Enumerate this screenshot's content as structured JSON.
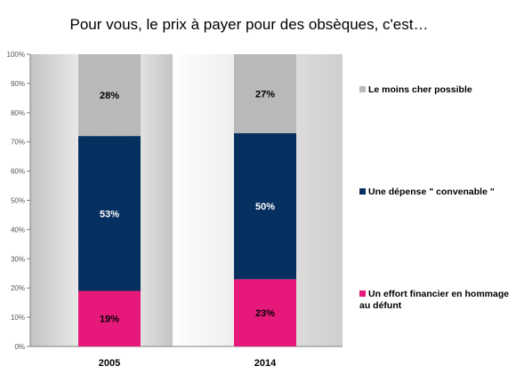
{
  "chart_data": {
    "type": "bar",
    "stacked": true,
    "title": "Pour vous, le prix à payer pour des obsèques, c'est…",
    "categories": [
      "2005",
      "2014"
    ],
    "ylim": [
      0,
      100
    ],
    "yticks": [
      "0%",
      "10%",
      "20%",
      "30%",
      "40%",
      "50%",
      "60%",
      "70%",
      "80%",
      "90%",
      "100%"
    ],
    "series": [
      {
        "name": "Un effort financier en hommage au défunt",
        "values": [
          19,
          23
        ],
        "labels": [
          "19%",
          "23%"
        ],
        "color": "#e6197a"
      },
      {
        "name": "Une dépense \" convenable \"",
        "values": [
          53,
          50
        ],
        "labels": [
          "53%",
          "50%"
        ],
        "color": "#06305f"
      },
      {
        "name": "Le moins cher possible",
        "values": [
          28,
          27
        ],
        "labels": [
          "28%",
          "27%"
        ],
        "color": "#b9b9b9"
      }
    ],
    "legend": [
      {
        "label": "Le moins cher possible",
        "color": "#b9b9b9"
      },
      {
        "label": "Une dépense \" convenable \"",
        "color": "#06305f"
      },
      {
        "label": "Un effort financier en hommage au défunt",
        "color": "#e6197a"
      }
    ],
    "legend_position": "right",
    "grid": false
  }
}
